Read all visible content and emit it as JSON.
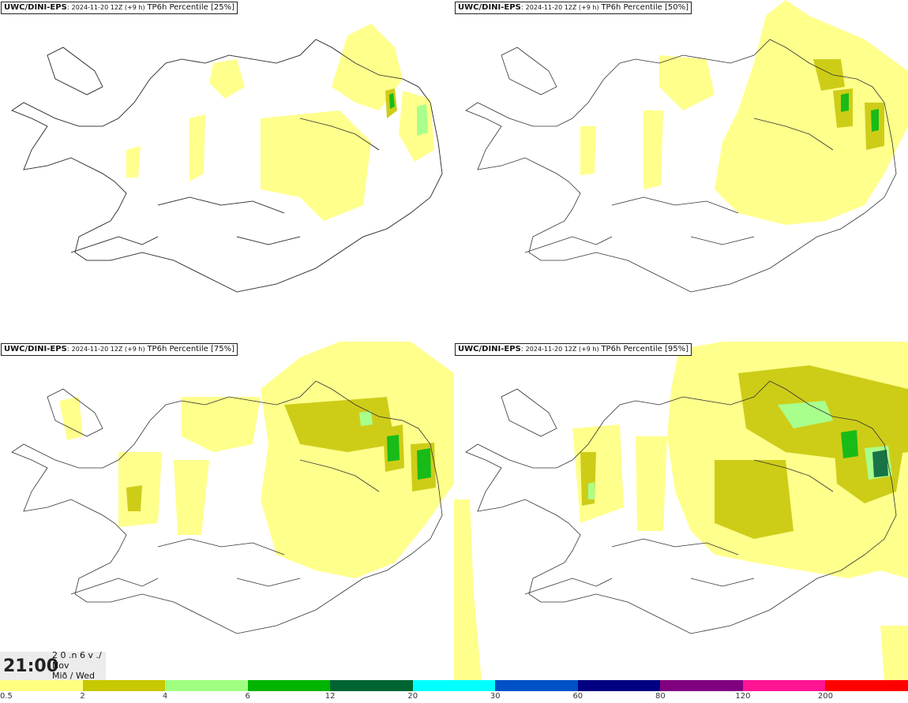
{
  "panels": [
    {
      "model": "UWC/DINI-EPS",
      "run": "2024-11-20 12Z (+9 h)",
      "param": "TP6h Percentile [25%]"
    },
    {
      "model": "UWC/DINI-EPS",
      "run": "2024-11-20 12Z (+9 h)",
      "param": "TP6h Percentile [50%]"
    },
    {
      "model": "UWC/DINI-EPS",
      "run": "2024-11-20 12Z (+9 h)",
      "param": "TP6h Percentile [75%]"
    },
    {
      "model": "UWC/DINI-EPS",
      "run": "2024-11-20 12Z (+9 h)",
      "param": "TP6h Percentile [95%]"
    }
  ],
  "time": {
    "hour": "21:00",
    "line1": "2 0 .n 6 v ./",
    "line2": "Nov",
    "line3": "Mið / Wed"
  },
  "legend": {
    "ticks": [
      "0.5",
      "2",
      "4",
      "6",
      "12",
      "20",
      "30",
      "60",
      "80",
      "120",
      "200"
    ],
    "colors": [
      "#ffff80",
      "#c8c800",
      "#a0ff80",
      "#00b400",
      "#006432",
      "#00ffff",
      "#0050c8",
      "#000080",
      "#800080",
      "#ff1493",
      "#ff0000"
    ]
  }
}
